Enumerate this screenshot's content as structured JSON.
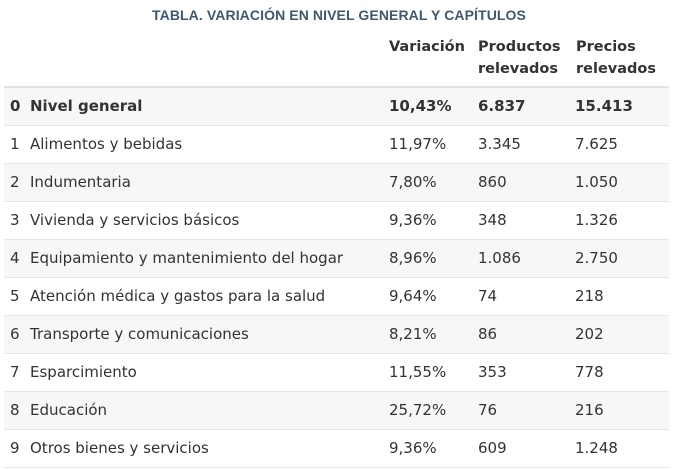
{
  "title": "TABLA. VARIACIÓN EN NIVEL GENERAL Y CAPÍTULOS",
  "headers": {
    "variacion": "Variación",
    "productos": [
      "Productos",
      "relevados"
    ],
    "precios": [
      "Precios",
      "relevados"
    ]
  },
  "rows": [
    {
      "idx": "0",
      "name": "Nivel general",
      "variacion": "10,43%",
      "productos": "6.837",
      "precios": "15.413"
    },
    {
      "idx": "1",
      "name": "Alimentos y bebidas",
      "variacion": "11,97%",
      "productos": "3.345",
      "precios": "7.625"
    },
    {
      "idx": "2",
      "name": "Indumentaria",
      "variacion": "7,80%",
      "productos": "860",
      "precios": "1.050"
    },
    {
      "idx": "3",
      "name": "Vivienda y servicios básicos",
      "variacion": "9,36%",
      "productos": "348",
      "precios": "1.326"
    },
    {
      "idx": "4",
      "name": "Equipamiento y mantenimiento del hogar",
      "variacion": "8,96%",
      "productos": "1.086",
      "precios": "2.750"
    },
    {
      "idx": "5",
      "name": "Atención médica y gastos para la salud",
      "variacion": "9,64%",
      "productos": "74",
      "precios": "218"
    },
    {
      "idx": "6",
      "name": "Transporte y comunicaciones",
      "variacion": "8,21%",
      "productos": "86",
      "precios": "202"
    },
    {
      "idx": "7",
      "name": "Esparcimiento",
      "variacion": "11,55%",
      "productos": "353",
      "precios": "778"
    },
    {
      "idx": "8",
      "name": "Educación",
      "variacion": "25,72%",
      "productos": "76",
      "precios": "216"
    },
    {
      "idx": "9",
      "name": "Otros bienes y servicios",
      "variacion": "9,36%",
      "productos": "609",
      "precios": "1.248"
    }
  ]
}
